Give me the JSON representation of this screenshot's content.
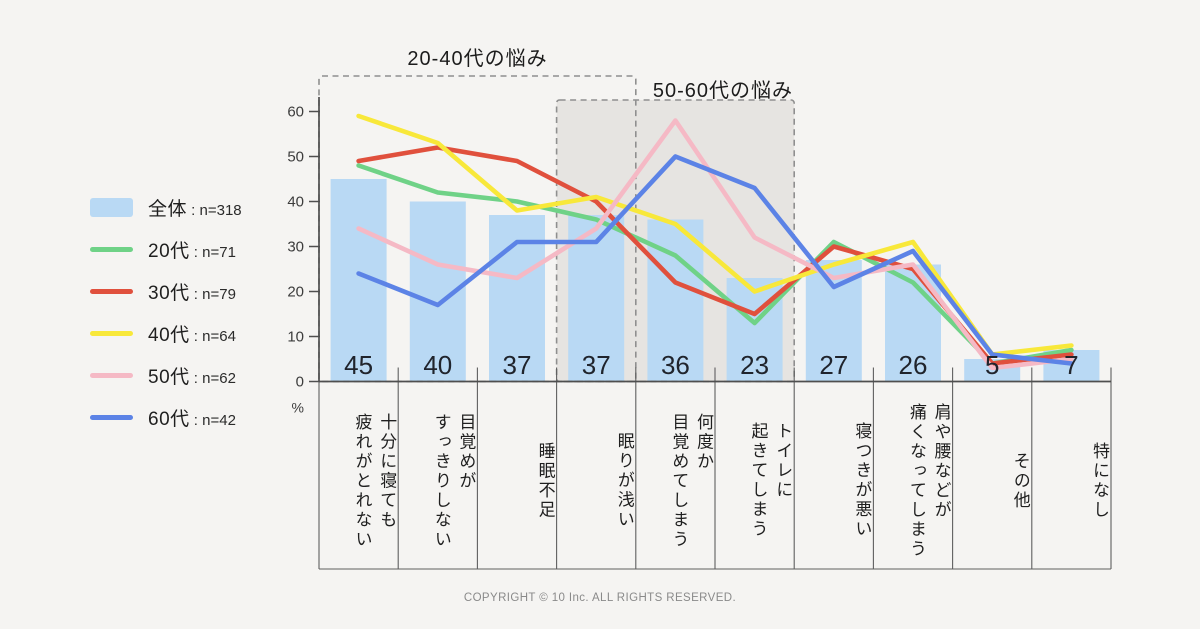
{
  "page": {
    "background": "#f5f4f2"
  },
  "annotations": {
    "box_20_40": {
      "label": "20-40代の悩み",
      "border": "dashed",
      "fill": "none"
    },
    "box_50_60": {
      "label": "50-60代の悩み",
      "border": "dashed",
      "fill": "#e6e4e1"
    }
  },
  "legend": {
    "items": [
      {
        "label": "全体",
        "count": "n=318",
        "color": "#b9d9f4",
        "swatch": "bar"
      },
      {
        "label": "20代",
        "count": "n=71",
        "color": "#6fd287",
        "swatch": "line"
      },
      {
        "label": "30代",
        "count": "n=79",
        "color": "#e0503d",
        "swatch": "line"
      },
      {
        "label": "40代",
        "count": "n=64",
        "color": "#f8e83a",
        "swatch": "line"
      },
      {
        "label": "50代",
        "count": "n=62",
        "color": "#f5b9c5",
        "swatch": "line"
      },
      {
        "label": "60代",
        "count": "n=42",
        "color": "#5c83e6",
        "swatch": "line"
      }
    ]
  },
  "chart_data": {
    "type": "bar+line",
    "title": "",
    "ylabel": "%",
    "yticks": [
      0,
      10,
      20,
      30,
      40,
      50,
      60
    ],
    "ylim": [
      0,
      63
    ],
    "grid": false,
    "legend_position": "left",
    "categories": [
      "十分に寝ても疲れがとれない",
      "目覚めがすっきりしない",
      "睡眠不足",
      "眠りが浅い",
      "何度か目覚めてしまう",
      "トイレに起きてしまう",
      "寝つきが悪い",
      "肩や腰などが痛くなってしまう",
      "その他",
      "特になし"
    ],
    "category_display_lines": [
      [
        "十分に寝ても",
        "疲れがとれない"
      ],
      [
        "目覚めが",
        "すっきりしない"
      ],
      [
        "睡眠不足"
      ],
      [
        "眠りが浅い"
      ],
      [
        "何度か",
        "目覚めてしまう"
      ],
      [
        "トイレに",
        "起きてしまう"
      ],
      [
        "寝つきが悪い"
      ],
      [
        "肩や腰などが",
        "痛くなってしまう"
      ],
      [
        "その他"
      ],
      [
        "特になし"
      ]
    ],
    "bar_series": {
      "name": "全体",
      "n": 318,
      "color": "#b9d9f4",
      "values": [
        45,
        40,
        37,
        37,
        36,
        23,
        27,
        26,
        5,
        7
      ]
    },
    "line_series": [
      {
        "name": "20代",
        "n": 71,
        "color": "#6fd287",
        "values": [
          48,
          42,
          40,
          36,
          28,
          13,
          31,
          22,
          4,
          7
        ]
      },
      {
        "name": "30代",
        "n": 79,
        "color": "#e0503d",
        "values": [
          49,
          52,
          49,
          40,
          22,
          15,
          30,
          25,
          4,
          6
        ]
      },
      {
        "name": "40代",
        "n": 64,
        "color": "#f8e83a",
        "values": [
          59,
          53,
          38,
          41,
          35,
          20,
          26,
          31,
          6,
          8
        ]
      },
      {
        "name": "50代",
        "n": 62,
        "color": "#f5b9c5",
        "values": [
          34,
          26,
          23,
          34,
          58,
          32,
          23,
          26,
          3,
          5
        ]
      },
      {
        "name": "60代",
        "n": 42,
        "color": "#5c83e6",
        "values": [
          24,
          17,
          31,
          31,
          50,
          43,
          21,
          29,
          6,
          4
        ]
      }
    ],
    "highlight_regions": [
      {
        "label": "20-40代の悩み",
        "category_start": 0,
        "category_end": 3,
        "fill": "none",
        "border": "dashed"
      },
      {
        "label": "50-60代の悩み",
        "category_start": 3,
        "category_end": 5,
        "fill": "#e6e4e1",
        "border": "dashed"
      }
    ]
  },
  "copyright": "COPYRIGHT © 10 Inc. ALL RIGHTS RESERVED."
}
